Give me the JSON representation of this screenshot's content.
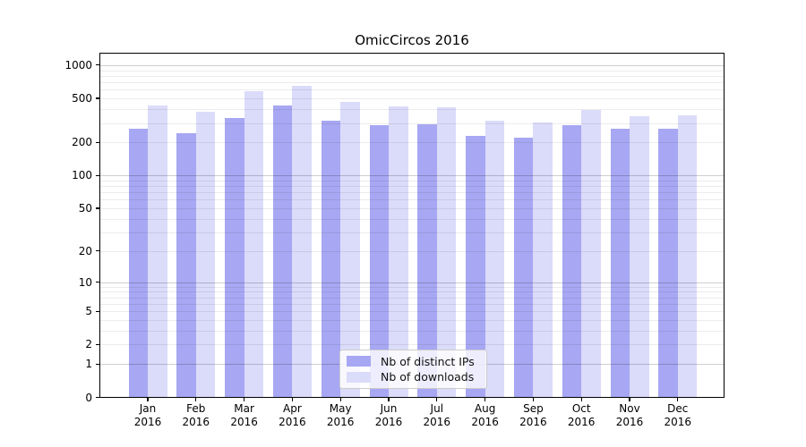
{
  "title": "OmicCircos 2016",
  "chart_data": {
    "type": "bar",
    "title": "OmicCircos 2016",
    "categories": [
      "Jan",
      "Feb",
      "Mar",
      "Apr",
      "May",
      "Jun",
      "Jul",
      "Aug",
      "Sep",
      "Oct",
      "Nov",
      "Dec"
    ],
    "category_year": "2016",
    "series": [
      {
        "name": "Nb of distinct IPs",
        "color": "#a7a7f3",
        "values": [
          266,
          241,
          334,
          435,
          314,
          285,
          293,
          228,
          220,
          286,
          268,
          266
        ]
      },
      {
        "name": "Nb of downloads",
        "color": "#dbdbfa",
        "values": [
          433,
          376,
          580,
          645,
          467,
          423,
          415,
          314,
          301,
          395,
          345,
          351
        ]
      }
    ],
    "y_axis": {
      "scale": "symlog",
      "tick_values": [
        0,
        1,
        2,
        5,
        10,
        20,
        50,
        100,
        200,
        500,
        1000
      ],
      "tick_labels": [
        "0",
        "1",
        "2",
        "5",
        "10",
        "20",
        "50",
        "100",
        "200",
        "500",
        "1000"
      ],
      "ylim": [
        0,
        1280
      ],
      "grid": true
    },
    "legend": {
      "position": "inside-bottom-center",
      "entries": [
        "Nb of distinct IPs",
        "Nb of downloads"
      ]
    }
  }
}
